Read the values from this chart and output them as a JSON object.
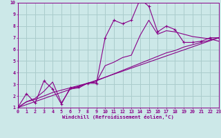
{
  "bg_color": "#cce8e8",
  "grid_color": "#aacccc",
  "line_color": "#880088",
  "xlabel": "Windchill (Refroidissement éolien,°C)",
  "xlim": [
    0,
    23
  ],
  "ylim": [
    1,
    10
  ],
  "xticks": [
    0,
    1,
    2,
    3,
    4,
    5,
    6,
    7,
    8,
    9,
    10,
    11,
    12,
    13,
    14,
    15,
    16,
    17,
    18,
    19,
    20,
    21,
    22,
    23
  ],
  "yticks": [
    1,
    2,
    3,
    4,
    5,
    6,
    7,
    8,
    9,
    10
  ],
  "line1_x": [
    0,
    1,
    2,
    3,
    4,
    5,
    6,
    7,
    8,
    9,
    10,
    11,
    12,
    13,
    14,
    15,
    16,
    17,
    18,
    19,
    20,
    21,
    22,
    23
  ],
  "line1_y": [
    1.0,
    2.2,
    1.4,
    3.3,
    2.6,
    1.3,
    2.7,
    2.8,
    3.1,
    3.1,
    7.0,
    8.5,
    8.2,
    8.5,
    10.3,
    9.7,
    7.5,
    8.0,
    7.7,
    6.6,
    6.6,
    6.7,
    7.0,
    7.0
  ],
  "line2_x": [
    0,
    1,
    2,
    3,
    4,
    5,
    6,
    7,
    8,
    9,
    10,
    11,
    12,
    13,
    14,
    15,
    16,
    17,
    18,
    19,
    20,
    21,
    22,
    23
  ],
  "line2_y": [
    1.0,
    1.5,
    1.7,
    2.0,
    2.3,
    2.5,
    2.7,
    2.9,
    3.1,
    3.3,
    3.6,
    3.9,
    4.2,
    4.5,
    4.8,
    5.1,
    5.4,
    5.7,
    5.9,
    6.2,
    6.4,
    6.6,
    6.8,
    7.0
  ],
  "line3_x": [
    0,
    1,
    2,
    3,
    4,
    5,
    6,
    7,
    8,
    9,
    10,
    11,
    12,
    13,
    14,
    15,
    16,
    17,
    18,
    19,
    20,
    21,
    22,
    23
  ],
  "line3_y": [
    1.0,
    1.5,
    1.8,
    2.4,
    3.2,
    1.4,
    2.6,
    2.7,
    3.1,
    3.2,
    4.6,
    4.9,
    5.3,
    5.5,
    7.2,
    8.5,
    7.3,
    7.6,
    7.5,
    7.3,
    7.1,
    7.0,
    6.9,
    6.7
  ],
  "line4_x": [
    0,
    23
  ],
  "line4_y": [
    1.0,
    7.0
  ]
}
